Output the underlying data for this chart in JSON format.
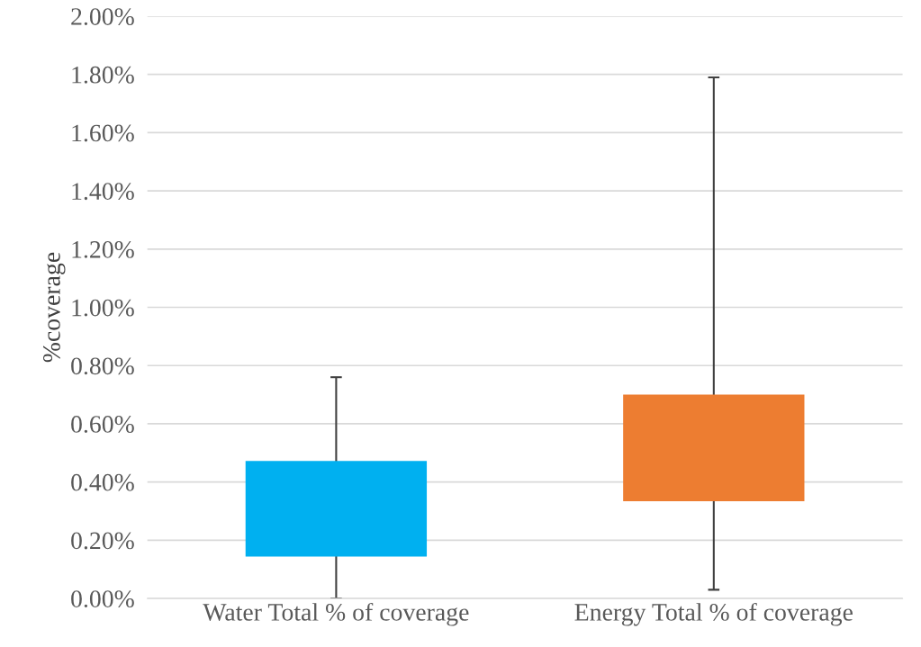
{
  "chart_data": {
    "type": "bar",
    "ylabel": "%coverage",
    "categories": [
      "Water Total % of coverage",
      "Energy Total % of coverage"
    ],
    "base": [
      0.144,
      0.334
    ],
    "values": [
      0.328,
      0.366
    ],
    "colors": [
      "#00b0f0",
      "#ed7d31"
    ],
    "errors": [
      [
        0.0,
        0.76
      ],
      [
        0.03,
        1.79
      ]
    ],
    "ylim": [
      0,
      2.0
    ],
    "yticks": [
      {
        "value": 0,
        "label": "0.00%"
      },
      {
        "value": 0.2,
        "label": "0.20%"
      },
      {
        "value": 0.4,
        "label": "0.40%"
      },
      {
        "value": 0.6,
        "label": "0.60%"
      },
      {
        "value": 0.8,
        "label": "0.80%"
      },
      {
        "value": 1.0,
        "label": "1.00%"
      },
      {
        "value": 1.2,
        "label": "1.20%"
      },
      {
        "value": 1.4,
        "label": "1.40%"
      },
      {
        "value": 1.6,
        "label": "1.60%"
      },
      {
        "value": 1.8,
        "label": "1.80%"
      },
      {
        "value": 2.0,
        "label": "2.00%"
      }
    ],
    "grid": "y"
  }
}
